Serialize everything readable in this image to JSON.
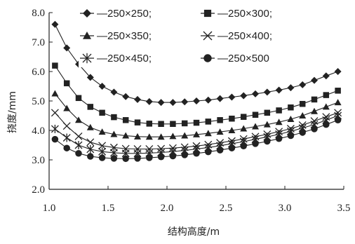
{
  "chart_data": {
    "type": "line",
    "title": "",
    "xlabel": "结构高度/m",
    "ylabel": "挠度/mm",
    "xlim": [
      1.0,
      3.5
    ],
    "ylim": [
      2.0,
      8.0
    ],
    "x_ticks": [
      "1.0",
      "1.5",
      "2.0",
      "2.5",
      "3.0",
      "3.5"
    ],
    "y_ticks": [
      "2.0",
      "3.0",
      "4.0",
      "5.0",
      "6.0",
      "7.0",
      "8.0"
    ],
    "grid": false,
    "legend_position": "top",
    "x": [
      1.05,
      1.15,
      1.25,
      1.35,
      1.45,
      1.55,
      1.65,
      1.75,
      1.85,
      1.95,
      2.05,
      2.15,
      2.25,
      2.35,
      2.45,
      2.55,
      2.65,
      2.75,
      2.85,
      2.95,
      3.05,
      3.15,
      3.25,
      3.35,
      3.45
    ],
    "series": [
      {
        "name": "250×250;",
        "marker": "diamond",
        "color": "#222222",
        "values": [
          7.6,
          6.8,
          6.25,
          5.8,
          5.5,
          5.3,
          5.15,
          5.05,
          4.98,
          4.95,
          4.95,
          4.97,
          5.0,
          5.03,
          5.08,
          5.13,
          5.18,
          5.24,
          5.3,
          5.37,
          5.45,
          5.55,
          5.7,
          5.85,
          6.0
        ]
      },
      {
        "name": "250×300;",
        "marker": "square",
        "color": "#222222",
        "values": [
          6.2,
          5.6,
          5.1,
          4.8,
          4.6,
          4.45,
          4.35,
          4.27,
          4.23,
          4.22,
          4.22,
          4.24,
          4.26,
          4.3,
          4.35,
          4.4,
          4.46,
          4.53,
          4.6,
          4.68,
          4.78,
          4.9,
          5.05,
          5.2,
          5.35
        ]
      },
      {
        "name": "250×350;",
        "marker": "triangle",
        "color": "#222222",
        "values": [
          5.25,
          4.75,
          4.35,
          4.1,
          3.95,
          3.87,
          3.82,
          3.79,
          3.78,
          3.78,
          3.8,
          3.82,
          3.86,
          3.9,
          3.95,
          4.0,
          4.06,
          4.13,
          4.2,
          4.28,
          4.38,
          4.5,
          4.65,
          4.8,
          4.95
        ]
      },
      {
        "name": "250×400;",
        "marker": "x",
        "color": "#222222",
        "values": [
          4.6,
          4.15,
          3.8,
          3.6,
          3.48,
          3.42,
          3.38,
          3.37,
          3.37,
          3.38,
          3.4,
          3.43,
          3.47,
          3.52,
          3.58,
          3.64,
          3.71,
          3.79,
          3.87,
          3.96,
          4.06,
          4.18,
          4.32,
          4.46,
          4.6
        ]
      },
      {
        "name": "250×450;",
        "marker": "star",
        "color": "#222222",
        "values": [
          4.05,
          3.75,
          3.5,
          3.36,
          3.28,
          3.24,
          3.22,
          3.22,
          3.23,
          3.25,
          3.28,
          3.32,
          3.37,
          3.42,
          3.48,
          3.55,
          3.62,
          3.7,
          3.78,
          3.87,
          3.97,
          4.08,
          4.2,
          4.35,
          4.5
        ]
      },
      {
        "name": "250×500",
        "marker": "circle",
        "color": "#222222",
        "values": [
          3.7,
          3.4,
          3.22,
          3.12,
          3.07,
          3.05,
          3.04,
          3.05,
          3.07,
          3.1,
          3.13,
          3.17,
          3.22,
          3.27,
          3.33,
          3.4,
          3.47,
          3.55,
          3.63,
          3.72,
          3.82,
          3.93,
          4.05,
          4.2,
          4.35
        ]
      }
    ],
    "legend_prefix": "—"
  }
}
